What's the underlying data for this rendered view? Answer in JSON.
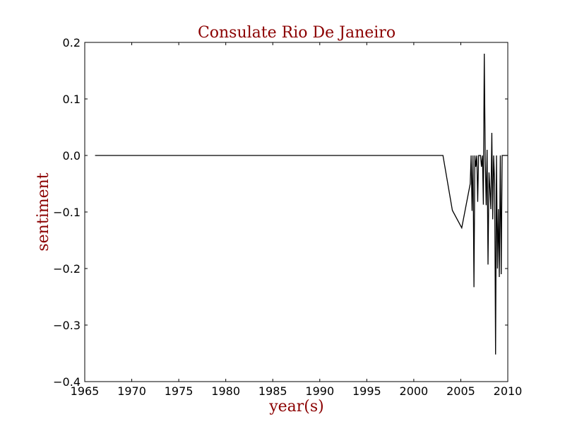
{
  "chart_data": {
    "type": "line",
    "title": "Consulate Rio De Janeiro",
    "xlabel": "year(s)",
    "ylabel": "sentiment",
    "title_color": "#8b0000",
    "line_color": "#000000",
    "xlim": [
      1965,
      2010
    ],
    "ylim": [
      -0.4,
      0.2
    ],
    "grid": false,
    "xticks": [
      1965,
      1970,
      1975,
      1980,
      1985,
      1990,
      1995,
      2000,
      2005,
      2010
    ],
    "yticks": [
      -0.4,
      -0.3,
      -0.2,
      -0.1,
      0.0,
      0.1,
      0.2
    ],
    "xtick_labels": [
      "1965",
      "1970",
      "1975",
      "1980",
      "1985",
      "1990",
      "1995",
      "2000",
      "2005",
      "2010"
    ],
    "ytick_labels": [
      "−0.4",
      "−0.3",
      "−0.2",
      "−0.1",
      "0.0",
      "0.1",
      "0.2"
    ],
    "series": [
      {
        "x": [
          1966.1,
          2003.1,
          2004.1,
          2005.1,
          2006.0,
          2006.1,
          2006.2,
          2006.3,
          2006.4,
          2006.5,
          2006.6,
          2006.7,
          2006.8,
          2006.9,
          2007.0,
          2007.1,
          2007.2,
          2007.3,
          2007.4,
          2007.5,
          2007.6,
          2007.7,
          2007.8,
          2007.9,
          2008.0,
          2008.1,
          2008.2,
          2008.3,
          2008.4,
          2008.5,
          2008.6,
          2008.7,
          2008.8,
          2008.9,
          2009.0,
          2009.1,
          2009.2,
          2009.3,
          2009.4,
          2009.5,
          2009.6,
          2009.7,
          2009.8,
          2009.9,
          2010.0
        ],
        "y": [
          0.0,
          0.0,
          -0.097,
          -0.128,
          -0.05,
          0.0,
          -0.098,
          0.0,
          -0.233,
          0.0,
          -0.02,
          0.0,
          -0.082,
          0.0,
          0.0,
          0.0,
          -0.02,
          0.0,
          -0.087,
          0.18,
          -0.01,
          -0.088,
          0.01,
          -0.193,
          -0.03,
          -0.06,
          -0.095,
          0.04,
          -0.113,
          0.0,
          -0.05,
          -0.352,
          0.0,
          -0.2,
          -0.095,
          -0.215,
          0.0,
          -0.21,
          0.0,
          0.0,
          0.0,
          0.0,
          0.0,
          0.0,
          0.0
        ]
      }
    ]
  }
}
